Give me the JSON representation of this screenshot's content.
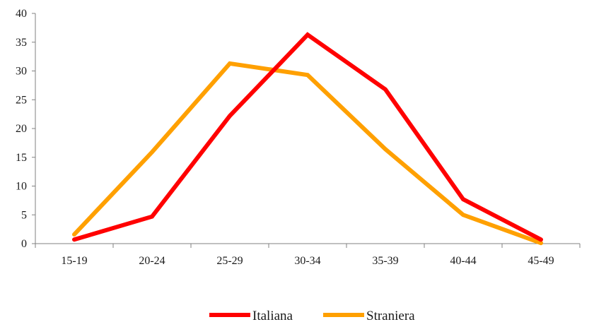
{
  "chart_data": {
    "type": "line",
    "title": "",
    "xlabel": "",
    "ylabel": "",
    "categories": [
      "15-19",
      "20-24",
      "25-29",
      "30-34",
      "35-39",
      "40-44",
      "45-49"
    ],
    "series": [
      {
        "name": "Italiana",
        "color": "#ff0000",
        "values": [
          0.7,
          4.7,
          22.2,
          36.3,
          26.8,
          7.7,
          0.7
        ]
      },
      {
        "name": "Straniera",
        "color": "#ffa000",
        "values": [
          1.6,
          15.9,
          31.3,
          29.3,
          16.4,
          5.0,
          0.1
        ]
      }
    ],
    "ylim": [
      0,
      40
    ],
    "yticks": [
      0,
      5,
      10,
      15,
      20,
      25,
      30,
      35,
      40
    ],
    "ytick_labels": [
      "0",
      "5",
      "10",
      "15",
      "20",
      "25",
      "30",
      "35",
      "40"
    ],
    "grid": false,
    "legend_position": "bottom"
  }
}
